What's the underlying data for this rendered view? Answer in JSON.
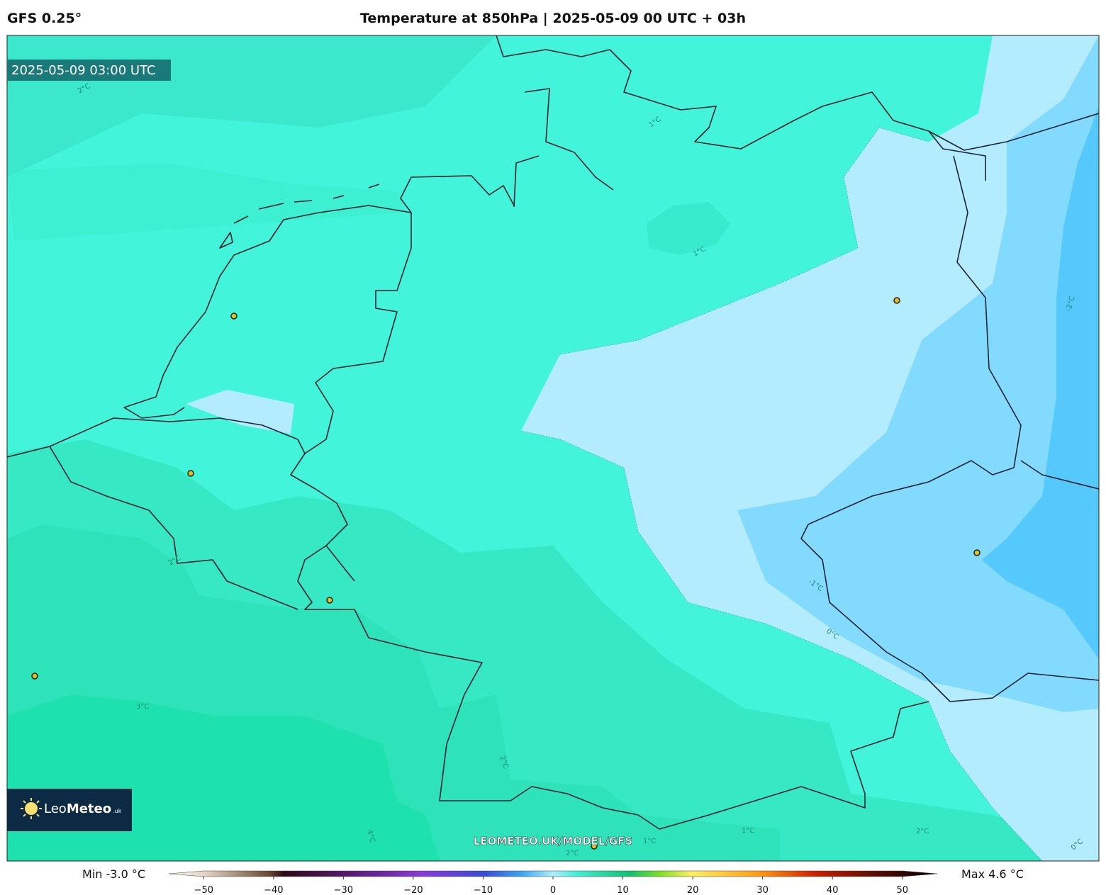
{
  "header": {
    "model": "GFS 0.25°",
    "title": "Temperature at 850hPa | 2025-05-09 00 UTC + 03h"
  },
  "map": {
    "valid_time": "2025-05-09 03:00 UTC",
    "contour_labels": [
      "2°C",
      "1°C",
      "1°C",
      "-2°C",
      "2°C",
      "-1°C",
      "0°C",
      "3°C",
      "2°C",
      "4°C",
      "1°C",
      "2°C",
      "1°C",
      "2°C",
      "0°C"
    ],
    "watermark": "LEOMETEO.UK/MODEL/GFS",
    "logo": {
      "light": "Leo",
      "bold": "Meteo",
      "suffix": ".uk"
    }
  },
  "colorbar": {
    "min_label": "Min -3.0 °C",
    "max_label": "Max 4.6 °C",
    "xlim": [
      -55,
      55
    ],
    "ticks": [
      {
        "value": -50,
        "label": "−50"
      },
      {
        "value": -40,
        "label": "−40"
      },
      {
        "value": -30,
        "label": "−30"
      },
      {
        "value": -20,
        "label": "−20"
      },
      {
        "value": -10,
        "label": "−10"
      },
      0,
      10,
      20,
      30,
      40,
      50
    ]
  }
}
